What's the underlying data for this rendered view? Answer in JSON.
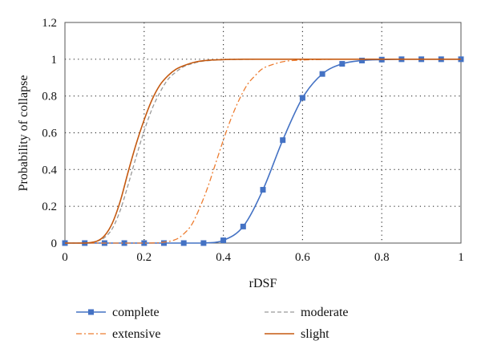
{
  "chart_data": {
    "type": "line",
    "title": "",
    "xlabel": "rDSF",
    "ylabel": "Probability of collapse",
    "xlim": [
      0,
      1
    ],
    "ylim": [
      0,
      1.2
    ],
    "xticks": [
      0,
      0.2,
      0.4,
      0.6,
      0.8,
      1
    ],
    "yticks": [
      0,
      0.2,
      0.4,
      0.6,
      0.8,
      1,
      1.2
    ],
    "xtick_labels": [
      "0",
      "0.2",
      "0.4",
      "0.6",
      "0.8",
      "1"
    ],
    "ytick_labels": [
      "0",
      "0.2",
      "0.4",
      "0.6",
      "0.8",
      "1",
      "1.2"
    ],
    "grid": true,
    "legend_position": "bottom",
    "series": [
      {
        "name": "complete",
        "color": "#4472C4",
        "line_style": "solid",
        "marker": "square",
        "x": [
          0,
          0.05,
          0.1,
          0.15,
          0.2,
          0.25,
          0.3,
          0.35,
          0.4,
          0.45,
          0.5,
          0.55,
          0.6,
          0.65,
          0.7,
          0.75,
          0.8,
          0.85,
          0.9,
          0.95,
          1
        ],
        "y": [
          0,
          0,
          0,
          0,
          0,
          0,
          0,
          0,
          0.015,
          0.09,
          0.29,
          0.56,
          0.79,
          0.92,
          0.975,
          0.993,
          0.998,
          1.0,
          1.0,
          1.0,
          1.0
        ]
      },
      {
        "name": "extensive",
        "color": "#ED7D31",
        "line_style": "dash-dot",
        "marker": "none",
        "x": [
          0,
          0.2,
          0.25,
          0.28,
          0.3,
          0.32,
          0.34,
          0.36,
          0.38,
          0.4,
          0.42,
          0.44,
          0.46,
          0.48,
          0.5,
          0.53,
          0.56,
          0.6,
          0.65,
          0.7,
          0.8,
          1
        ],
        "y": [
          0,
          0,
          0.005,
          0.02,
          0.05,
          0.1,
          0.19,
          0.3,
          0.43,
          0.56,
          0.68,
          0.78,
          0.86,
          0.91,
          0.95,
          0.975,
          0.99,
          0.996,
          0.999,
          1.0,
          1.0,
          1.0
        ]
      },
      {
        "name": "moderate",
        "color": "#999999",
        "line_style": "dashed",
        "marker": "none",
        "x": [
          0,
          0.05,
          0.08,
          0.1,
          0.12,
          0.14,
          0.16,
          0.18,
          0.2,
          0.22,
          0.24,
          0.26,
          0.28,
          0.3,
          0.32,
          0.35,
          0.4,
          0.45,
          0.5,
          0.6,
          1
        ],
        "y": [
          0,
          0,
          0.01,
          0.03,
          0.08,
          0.18,
          0.32,
          0.47,
          0.61,
          0.73,
          0.82,
          0.89,
          0.93,
          0.96,
          0.975,
          0.99,
          0.997,
          0.999,
          1.0,
          1.0,
          1.0
        ]
      },
      {
        "name": "slight",
        "color": "#C55A11",
        "line_style": "solid",
        "marker": "none",
        "x": [
          0,
          0.05,
          0.08,
          0.1,
          0.12,
          0.14,
          0.16,
          0.18,
          0.2,
          0.22,
          0.24,
          0.26,
          0.28,
          0.3,
          0.33,
          0.36,
          0.4,
          0.45,
          0.5,
          0.6,
          1
        ],
        "y": [
          0,
          0,
          0.01,
          0.04,
          0.11,
          0.23,
          0.39,
          0.54,
          0.67,
          0.78,
          0.86,
          0.91,
          0.945,
          0.965,
          0.985,
          0.994,
          0.998,
          1.0,
          1.0,
          1.0,
          1.0
        ]
      }
    ]
  }
}
